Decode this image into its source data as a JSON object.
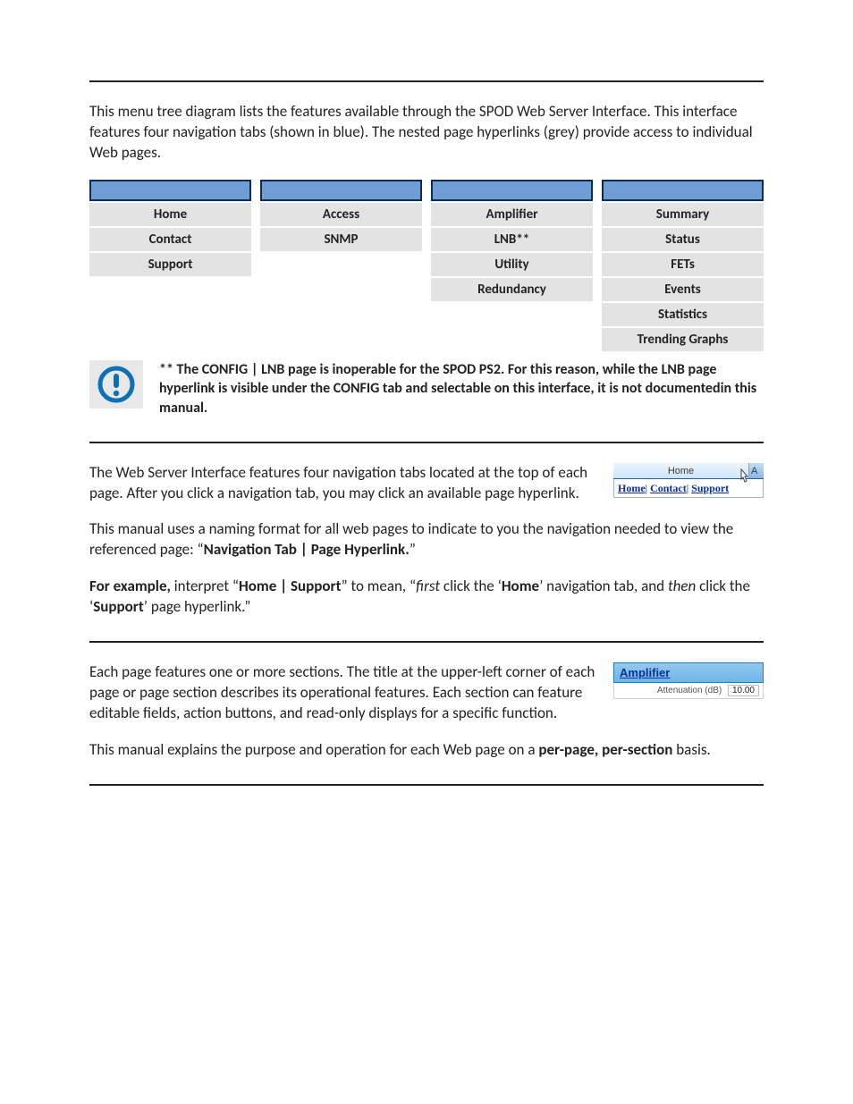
{
  "section1": {
    "intro": "This menu tree diagram lists the features available through the SPOD Web Server Interface. This interface features four navigation tabs (shown in blue). The nested page hyperlinks (grey) provide access to individual Web pages.",
    "columns": [
      {
        "items": [
          "Home",
          "Contact",
          "Support"
        ]
      },
      {
        "items": [
          "Access",
          "SNMP"
        ]
      },
      {
        "items": [
          "Amplifier",
          "LNB**",
          "Utility",
          "Redundancy"
        ]
      },
      {
        "items": [
          "Summary",
          "Status",
          "FETs",
          "Events",
          "Statistics",
          "Trending Graphs"
        ]
      }
    ],
    "header_bg": "#6e9ed4",
    "header_border": "#0b2b5a",
    "cell_bg": "#e3e3e3",
    "note": "** The CONFIG | LNB page is inoperable for the SPOD PS2. For this reason, while the LNB page hyperlink is visible under the CONFIG tab and selectable on this interface, it is not documentedin this manual.",
    "icon_color": "#0a70b8"
  },
  "section2": {
    "p1": "The Web Server Interface features four navigation tabs located at the top of each page. After you click a navigation tab, you may click an available page hyperlink.",
    "p2_pre": "This manual uses a naming format for all web pages to indicate to you the navigation needed to view the referenced page: “",
    "p2_bold": "Navigation Tab | Page Hyperlink.",
    "p2_post": "”",
    "p3_parts": {
      "lead_bold": "For example,",
      "a": " interpret “",
      "home_support": "Home | Support",
      "b": "” to mean, “",
      "first_it": "first",
      "c": " click the ‘",
      "home_bold": "Home",
      "d": "’ navigation tab, and ",
      "then_it": "then",
      "e": " click the ‘",
      "support_bold": "Support",
      "f": "’ page hyperlink.”"
    },
    "mini": {
      "tab_active": "Home",
      "tab_partial": "A",
      "links": [
        "Home",
        "Contact",
        "Support"
      ],
      "link_color": "#0a2ea0"
    }
  },
  "section3": {
    "p1": "Each page features one or more sections. The title at the upper-left corner of each page or page section describes its operational features. Each section can feature editable fields, action buttons, and read-only displays for a specific function.",
    "p2_a": "This manual explains the purpose and operation for each Web page on a ",
    "p2_bold": "per-page, per-section",
    "p2_b": " basis.",
    "mini": {
      "title": "Amplifier",
      "label": "Attenuation (dB)",
      "value": "10.00",
      "title_color": "#0a2ea0"
    }
  }
}
